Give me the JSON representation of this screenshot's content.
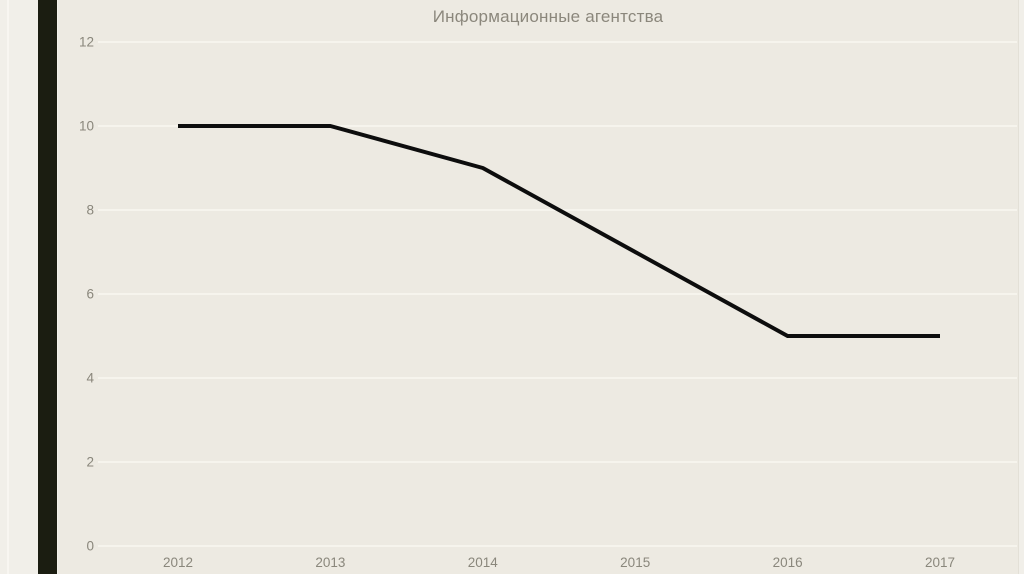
{
  "slide": {
    "title": "Информационные агентства"
  },
  "chart_data": {
    "type": "line",
    "title": "Информационные агентства",
    "categories": [
      "2012",
      "2013",
      "2014",
      "2015",
      "2016",
      "2017"
    ],
    "values": [
      10,
      10,
      9,
      7,
      5,
      5
    ],
    "xlabel": "",
    "ylabel": "",
    "ylim": [
      0,
      12
    ],
    "yticks": [
      0,
      2,
      4,
      6,
      8,
      10,
      12
    ],
    "grid": "horizontal-only",
    "legend": "none"
  },
  "colors": {
    "background": "#EDEAE2",
    "side_strip": "#F1EFE9",
    "accent_bar": "#1B1D11",
    "gridline": "#F6F4ED",
    "tick_label": "#8A877C",
    "title": "#8B877C",
    "line": "#0D0D0D"
  }
}
